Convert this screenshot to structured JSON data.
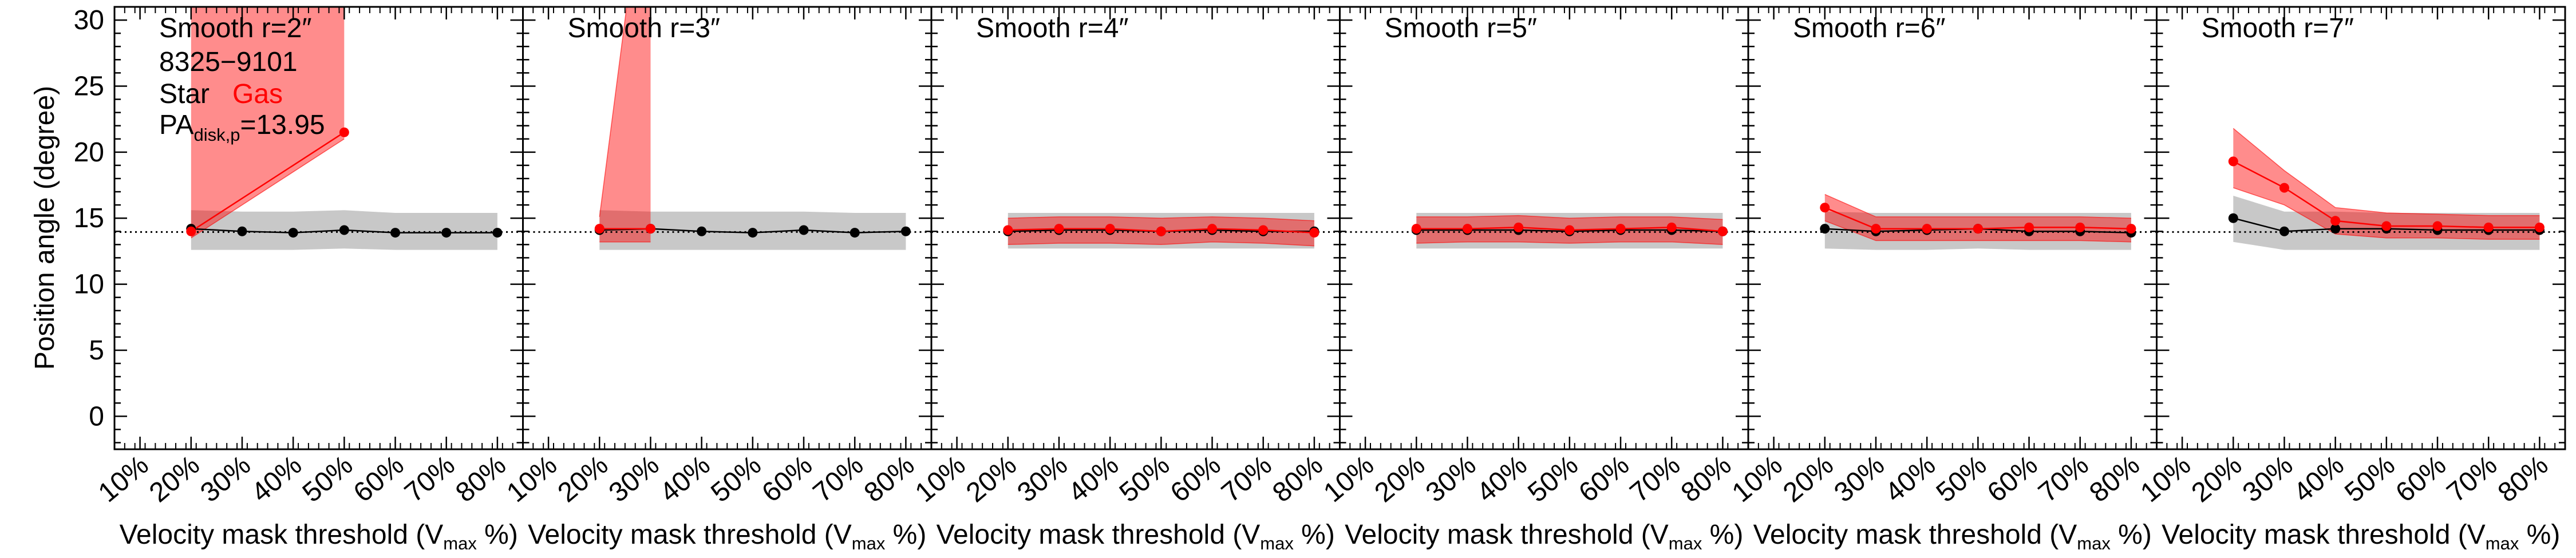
{
  "figure": {
    "ylabel": "Position angle (degree)",
    "xlabel_prefix": "Velocity mask threshold (V",
    "xlabel_sub": "max",
    "xlabel_suffix": " %)",
    "info": {
      "id": "8325−9101",
      "star_label": "Star",
      "gas_label": "Gas",
      "pa_prefix": "PA",
      "pa_sub": "disk,p",
      "pa_value": "=13.95"
    },
    "colors": {
      "star": "#000000",
      "gas": "#ff0000",
      "star_band": "#c8c8c8",
      "gas_band": "#ff0000"
    }
  },
  "chart_data": [
    {
      "type": "line",
      "title": "Smooth r=2″",
      "categories": [
        "10%",
        "20%",
        "30%",
        "40%",
        "50%",
        "60%",
        "70%",
        "80%"
      ],
      "ylim": [
        -2.5,
        31
      ],
      "reference_line": 13.95,
      "series": [
        {
          "name": "Star",
          "x": [
            20,
            30,
            40,
            50,
            60,
            70,
            80
          ],
          "values": [
            14.2,
            14.0,
            13.9,
            14.1,
            13.9,
            13.9,
            13.9
          ],
          "lower": [
            12.6,
            12.6,
            12.6,
            12.7,
            12.6,
            12.6,
            12.6
          ],
          "upper": [
            15.6,
            15.5,
            15.5,
            15.6,
            15.4,
            15.4,
            15.4
          ]
        },
        {
          "name": "Gas",
          "x": [
            20,
            50
          ],
          "values": [
            14.0,
            21.5
          ],
          "lower": [
            13.5,
            21.0
          ],
          "upper": [
            45,
            45
          ]
        }
      ]
    },
    {
      "type": "line",
      "title": "Smooth r=3″",
      "categories": [
        "10%",
        "20%",
        "30%",
        "40%",
        "50%",
        "60%",
        "70%",
        "80%"
      ],
      "ylim": [
        -2.5,
        31
      ],
      "reference_line": 13.95,
      "series": [
        {
          "name": "Star",
          "x": [
            20,
            30,
            40,
            50,
            60,
            70,
            80
          ],
          "values": [
            14.1,
            14.2,
            14.0,
            13.9,
            14.1,
            13.9,
            14.0
          ],
          "lower": [
            12.6,
            12.6,
            12.6,
            12.6,
            12.6,
            12.6,
            12.6
          ],
          "upper": [
            15.6,
            15.5,
            15.5,
            15.5,
            15.5,
            15.4,
            15.4
          ]
        },
        {
          "name": "Gas",
          "x": [
            20,
            30
          ],
          "values": [
            14.2,
            14.2
          ],
          "lower": [
            13.2,
            13.2
          ],
          "upper": [
            15.1,
            45
          ]
        }
      ]
    },
    {
      "type": "line",
      "title": "Smooth r=4″",
      "categories": [
        "10%",
        "20%",
        "30%",
        "40%",
        "50%",
        "60%",
        "70%",
        "80%"
      ],
      "ylim": [
        -2.5,
        31
      ],
      "reference_line": 13.95,
      "series": [
        {
          "name": "Star",
          "x": [
            20,
            30,
            40,
            50,
            60,
            70,
            80
          ],
          "values": [
            14.0,
            14.1,
            14.1,
            14.0,
            14.1,
            14.0,
            14.0
          ],
          "lower": [
            12.7,
            12.7,
            12.7,
            12.7,
            12.7,
            12.7,
            12.7
          ],
          "upper": [
            15.4,
            15.4,
            15.4,
            15.4,
            15.4,
            15.4,
            15.4
          ]
        },
        {
          "name": "Gas",
          "x": [
            20,
            30,
            40,
            50,
            60,
            70,
            80
          ],
          "values": [
            14.1,
            14.2,
            14.2,
            14.0,
            14.2,
            14.1,
            13.9
          ],
          "lower": [
            13.0,
            13.1,
            13.1,
            13.0,
            13.2,
            13.1,
            12.9
          ],
          "upper": [
            15.0,
            15.1,
            15.1,
            15.0,
            15.1,
            15.0,
            14.8
          ]
        }
      ]
    },
    {
      "type": "line",
      "title": "Smooth r=5″",
      "categories": [
        "10%",
        "20%",
        "30%",
        "40%",
        "50%",
        "60%",
        "70%",
        "80%"
      ],
      "ylim": [
        -2.5,
        31
      ],
      "reference_line": 13.95,
      "series": [
        {
          "name": "Star",
          "x": [
            20,
            30,
            40,
            50,
            60,
            70,
            80
          ],
          "values": [
            14.1,
            14.1,
            14.1,
            14.0,
            14.1,
            14.1,
            14.0
          ],
          "lower": [
            12.7,
            12.7,
            12.7,
            12.7,
            12.7,
            12.7,
            12.7
          ],
          "upper": [
            15.4,
            15.4,
            15.4,
            15.4,
            15.4,
            15.4,
            15.4
          ]
        },
        {
          "name": "Gas",
          "x": [
            20,
            30,
            40,
            50,
            60,
            70,
            80
          ],
          "values": [
            14.2,
            14.2,
            14.3,
            14.1,
            14.2,
            14.3,
            14.0
          ],
          "lower": [
            13.1,
            13.2,
            13.2,
            13.1,
            13.2,
            13.2,
            13.0
          ],
          "upper": [
            15.1,
            15.1,
            15.2,
            15.0,
            15.1,
            15.1,
            14.9
          ]
        }
      ]
    },
    {
      "type": "line",
      "title": "Smooth r=6″",
      "categories": [
        "10%",
        "20%",
        "30%",
        "40%",
        "50%",
        "60%",
        "70%",
        "80%"
      ],
      "ylim": [
        -2.5,
        31
      ],
      "reference_line": 13.95,
      "series": [
        {
          "name": "Star",
          "x": [
            20,
            30,
            40,
            50,
            60,
            70,
            80
          ],
          "values": [
            14.2,
            14.0,
            14.1,
            14.2,
            14.0,
            14.0,
            13.9
          ],
          "lower": [
            12.7,
            12.6,
            12.6,
            12.7,
            12.6,
            12.6,
            12.6
          ],
          "upper": [
            15.5,
            15.4,
            15.4,
            15.4,
            15.4,
            15.4,
            15.4
          ]
        },
        {
          "name": "Gas",
          "x": [
            20,
            30,
            40,
            50,
            60,
            70,
            80
          ],
          "values": [
            15.8,
            14.2,
            14.2,
            14.2,
            14.3,
            14.3,
            14.2
          ],
          "lower": [
            14.8,
            13.3,
            13.3,
            13.3,
            13.3,
            13.3,
            13.2
          ],
          "upper": [
            16.8,
            15.1,
            15.1,
            15.1,
            15.1,
            15.1,
            15.0
          ]
        }
      ]
    },
    {
      "type": "line",
      "title": "Smooth r=7″",
      "categories": [
        "10%",
        "20%",
        "30%",
        "40%",
        "50%",
        "60%",
        "70%",
        "80%"
      ],
      "ylim": [
        -2.5,
        31
      ],
      "reference_line": 13.95,
      "series": [
        {
          "name": "Star",
          "x": [
            20,
            30,
            40,
            50,
            60,
            70,
            80
          ],
          "values": [
            15.0,
            14.0,
            14.2,
            14.2,
            14.1,
            14.1,
            14.1
          ],
          "lower": [
            13.2,
            12.6,
            12.6,
            12.6,
            12.6,
            12.6,
            12.6
          ],
          "upper": [
            16.7,
            15.5,
            15.5,
            15.4,
            15.4,
            15.4,
            15.4
          ]
        },
        {
          "name": "Gas",
          "x": [
            20,
            30,
            40,
            50,
            60,
            70,
            80
          ],
          "values": [
            19.3,
            17.3,
            14.8,
            14.4,
            14.4,
            14.3,
            14.3
          ],
          "lower": [
            17.3,
            16.0,
            13.8,
            13.5,
            13.5,
            13.4,
            13.4
          ],
          "upper": [
            21.8,
            18.6,
            15.8,
            15.4,
            15.3,
            15.2,
            15.2
          ]
        }
      ]
    }
  ]
}
